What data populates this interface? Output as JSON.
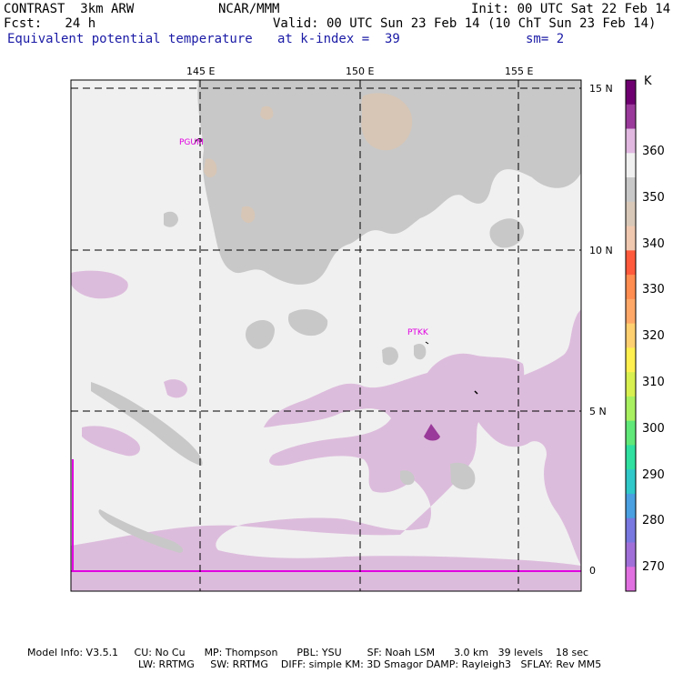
{
  "header": {
    "model": "CONTRAST  3km ARW",
    "center": "NCAR/MMM",
    "init": "Init: 00 UTC Sat 22 Feb 14",
    "fcst": "Fcst:   24 h",
    "valid": "Valid: 00 UTC Sun 23 Feb 14 (10 ChT Sun 23 Feb 14)",
    "field": "Equivalent potential temperature",
    "level": "at k-index =  39",
    "smooth": "sm= 2"
  },
  "axes": {
    "lon_labels": [
      "145 E",
      "150 E",
      "155 E"
    ],
    "lat_labels": [
      "15 N",
      "10 N",
      "5 N",
      "0"
    ]
  },
  "stations": [
    "PGUM",
    "PTKK"
  ],
  "colorbar": {
    "unit": "K",
    "labels": [
      "360",
      "350",
      "340",
      "330",
      "320",
      "310",
      "300",
      "290",
      "280",
      "270"
    ],
    "colors": [
      "#6e0070",
      "#9a3a9a",
      "#e0b8e0",
      "#f0f0f0",
      "#c8c8c8",
      "#d8c8b8",
      "#f0c8b0",
      "#ff5a3c",
      "#ff8c50",
      "#ffa868",
      "#ffd070",
      "#fff050",
      "#d8f050",
      "#a8f060",
      "#60e878",
      "#30e0a0",
      "#30c8c8",
      "#4aa0e0",
      "#7878e0",
      "#a070d8",
      "#e070e0"
    ],
    "colors_note": "top to bottom"
  },
  "footer": {
    "line1": "Model Info: V3.5.1     CU: No Cu      MP: Thompson      PBL: YSU        SF: Noah LSM      3.0 km   39 levels    18 sec",
    "line2": "LW: RRTMG     SW: RRTMG    DIFF: simple KM: 3D Smagor DAMP: Rayleigh3   SFLAY: Rev MM5"
  },
  "palette": {
    "background": "#f0f0f0",
    "gray": "#c8c8c8",
    "tan": "#d7c6b6",
    "lilac": "#dcbcdc",
    "purple": "#9a3a9a",
    "grid": "#000000",
    "station": "#e000e0"
  }
}
